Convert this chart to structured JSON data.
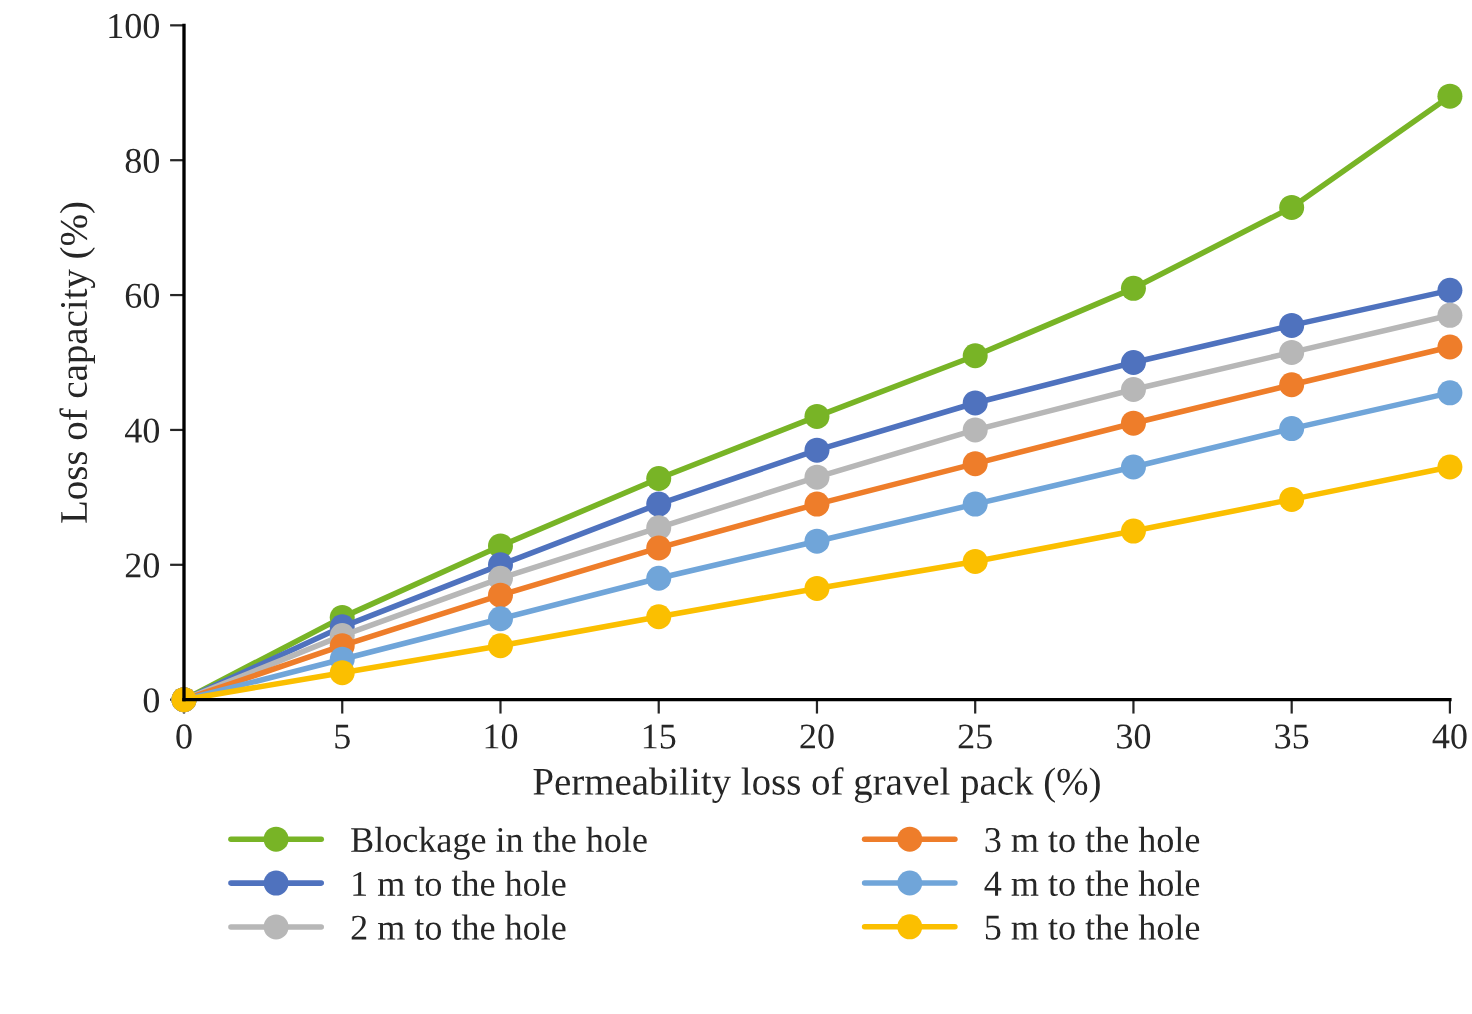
{
  "chart_data": {
    "type": "line",
    "xlabel": "Permeability loss of gravel pack (%)",
    "ylabel": "Loss of capacity (%)",
    "x": [
      0,
      5,
      10,
      15,
      20,
      25,
      30,
      35,
      40
    ],
    "xlim": [
      0,
      40
    ],
    "xticks": [
      0,
      5,
      10,
      15,
      20,
      25,
      30,
      35,
      40
    ],
    "ylim": [
      0,
      100
    ],
    "yticks": [
      0,
      20,
      40,
      60,
      80,
      100
    ],
    "grid": false,
    "legend": "bottom",
    "marker": "circle",
    "line_style": "solid",
    "series": [
      {
        "name": "Blockage in the hole",
        "color": "#78b426",
        "values": [
          0,
          12.2,
          22.8,
          32.8,
          42,
          51,
          61,
          73,
          89.5
        ]
      },
      {
        "name": "1 m to the hole",
        "color": "#4f72be",
        "values": [
          0,
          10.8,
          20,
          29,
          37,
          44,
          50,
          55.5,
          60.7
        ]
      },
      {
        "name": "2 m to the hole",
        "color": "#b7b7b7",
        "values": [
          0,
          9.5,
          18,
          25.5,
          33,
          40,
          46,
          51.5,
          57
        ]
      },
      {
        "name": "3 m to the hole",
        "color": "#ee7d2a",
        "values": [
          0,
          8,
          15.5,
          22.5,
          29,
          35,
          41,
          46.7,
          52.3
        ]
      },
      {
        "name": "4 m to the hole",
        "color": "#70a5d9",
        "values": [
          0,
          6,
          12,
          18,
          23.5,
          29,
          34.5,
          40.2,
          45.5
        ]
      },
      {
        "name": "5 m to the hole",
        "color": "#fbbf00",
        "values": [
          0,
          4,
          8,
          12.3,
          16.5,
          20.5,
          25,
          29.7,
          34.5
        ]
      }
    ]
  }
}
